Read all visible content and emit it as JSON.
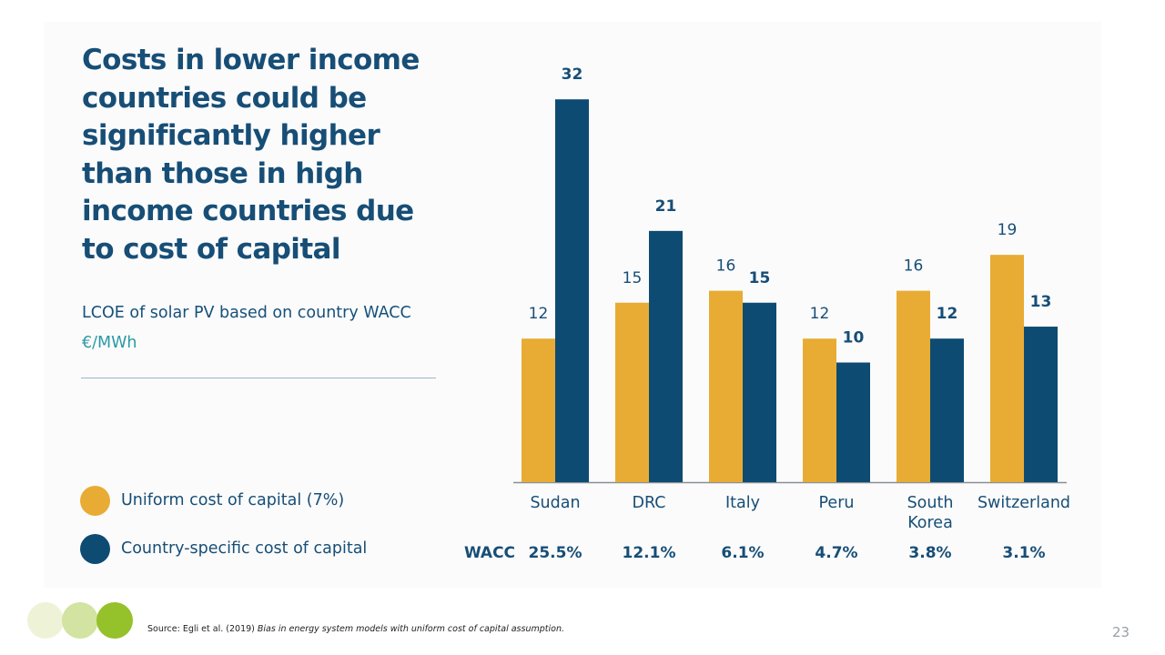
{
  "slide": {
    "title": "Costs in lower income countries could be significantly higher than those in high income countries due to cost of capital",
    "subtitle": "LCOE of solar PV based on country WACC",
    "unit": "€/MWh",
    "legend": [
      {
        "label": "Uniform cost of capital (7%)",
        "color": "#e8ac34"
      },
      {
        "label": "Country-specific cost of capital",
        "color": "#0d4b72"
      }
    ],
    "source_prefix": "Source: Egli et al. (2019) ",
    "source_title": "Bias in energy system models with uniform cost of capital assumption.",
    "page_number": "23",
    "footer_circle_colors": [
      "#eef3d8",
      "#d2e3a2",
      "#95c12a"
    ]
  },
  "chart_data": {
    "type": "bar",
    "categories": [
      "Sudan",
      "DRC",
      "Italy",
      "Peru",
      "South Korea",
      "Switzerland"
    ],
    "category_lines": [
      [
        "Sudan"
      ],
      [
        "DRC"
      ],
      [
        "Italy"
      ],
      [
        "Peru"
      ],
      [
        "South",
        "Korea"
      ],
      [
        "Switzerland"
      ]
    ],
    "series": [
      {
        "name": "Uniform cost of capital (7%)",
        "values": [
          12,
          15,
          16,
          12,
          16,
          19
        ],
        "color": "#e8ac34"
      },
      {
        "name": "Country-specific cost of capital",
        "values": [
          32,
          21,
          15,
          10,
          12,
          13
        ],
        "color": "#0d4b72"
      }
    ],
    "wacc_label": "WACC",
    "wacc": [
      "25.5%",
      "12.1%",
      "6.1%",
      "4.7%",
      "3.8%",
      "3.1%"
    ],
    "ylim": [
      0,
      32
    ],
    "ylabel": "€/MWh",
    "axis_color": "#8a8f94",
    "label_color": "#174e76"
  }
}
